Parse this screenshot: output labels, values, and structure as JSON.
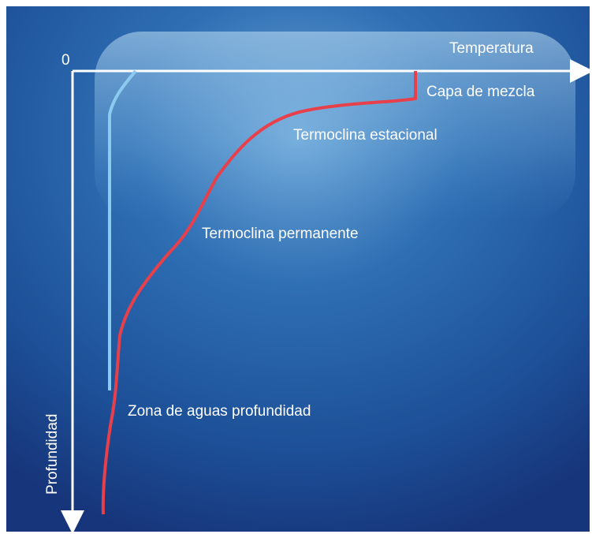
{
  "axes": {
    "origin": "0",
    "x_label": "Temperatura",
    "y_label": "Profundidad"
  },
  "layers": [
    "Capa de mezcla",
    "Termoclina estacional",
    "Termoclina permanente",
    "Zona de aguas profundidad"
  ]
}
